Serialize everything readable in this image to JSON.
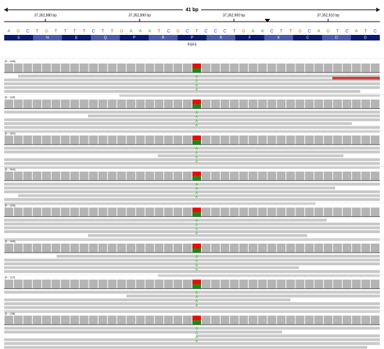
{
  "header": {
    "span": "41 bp",
    "positions": [
      "37,352,880 bp",
      "37,352,890 bp",
      "37,352,900 bp",
      "37,352,910 bp"
    ]
  },
  "sequence": {
    "bases": [
      "A",
      "G",
      "C",
      "T",
      "G",
      "T",
      "T",
      "T",
      "T",
      "C",
      "T",
      "T",
      "G",
      "A",
      "A",
      "A",
      "T",
      "C",
      "G",
      "C",
      "T",
      "C",
      "C",
      "C",
      "T",
      "G",
      "A",
      "A",
      "C",
      "T",
      "T",
      "G",
      "C",
      "A",
      "G",
      "T",
      "C",
      "A",
      "T",
      "C"
    ]
  },
  "translation": {
    "aminoacids": [
      "S",
      "N",
      "E",
      "Q",
      "P",
      "R",
      "P",
      "R",
      "F",
      "K",
      "C",
      "D",
      "D"
    ]
  },
  "gene": {
    "name": "FGF3"
  },
  "tracks": [
    {
      "range": "[0 - 108]",
      "alt": "A"
    },
    {
      "range": "[0 - 110]",
      "alt": "A"
    },
    {
      "range": "[0 - 102]",
      "alt": "A"
    },
    {
      "range": "[0 - 104]",
      "alt": "A"
    },
    {
      "range": "[0 - 108]",
      "alt": "A"
    },
    {
      "range": "[0 - 108]",
      "alt": "A"
    },
    {
      "range": "[0 - 117]",
      "alt": "A"
    },
    {
      "range": "[0 - 118]",
      "alt": "A"
    }
  ]
}
